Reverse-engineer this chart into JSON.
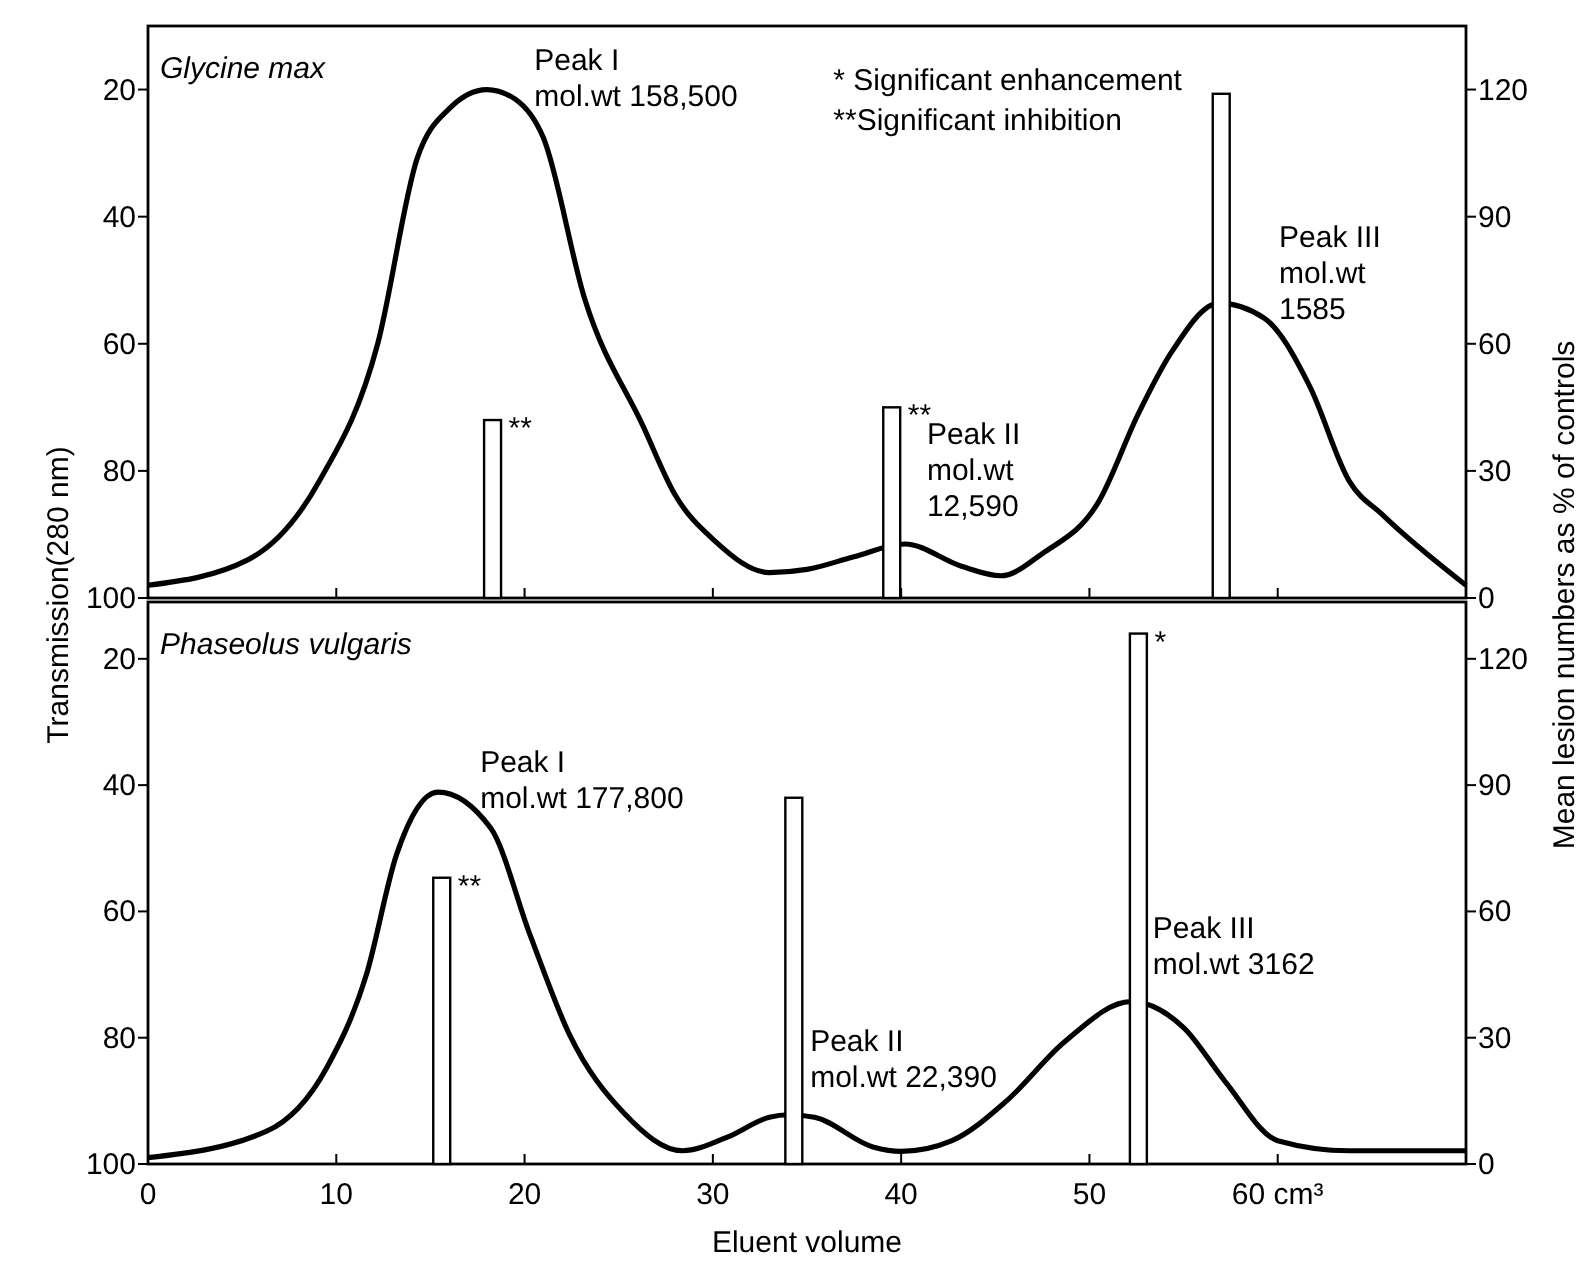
{
  "chart_data": [
    {
      "type": "line",
      "title": "Glycine max",
      "ylabel": "Transmission(280 nm)",
      "y2label": "Mean lesion numbers as % of controls",
      "xlim": [
        0,
        70
      ],
      "ylim": [
        100,
        10
      ],
      "y2lim": [
        0,
        135
      ],
      "xticks": [
        0,
        10,
        20,
        30,
        40,
        50,
        60
      ],
      "yticks": [
        20,
        40,
        60,
        80,
        100
      ],
      "y2ticks": [
        0,
        30,
        60,
        90,
        120
      ],
      "tick_labels": "y",
      "series": [
        {
          "color": "#000000",
          "x": [
            0,
            5.3,
            9.1,
            12.2,
            14.3,
            16,
            18,
            19.5,
            21,
            23.2,
            26.3,
            28,
            30.1,
            33,
            35,
            37.5,
            40.2,
            43.2,
            45.3,
            47.5,
            50.5,
            52.6,
            54.3,
            56.9,
            59.3,
            61.7,
            63.8,
            65.6,
            70
          ],
          "values": [
            98,
            94,
            81.6,
            60,
            30.8,
            23,
            20,
            21.5,
            27.6,
            53,
            73,
            83.8,
            91,
            96,
            95.5,
            93.5,
            91.5,
            95,
            96.5,
            93,
            84.8,
            71,
            61.6,
            53.6,
            56,
            66.7,
            81.6,
            87,
            98
          ]
        },
        {
          "type": "bar",
          "axis": "y2",
          "color": "#ffffff",
          "x": [
            18.3,
            39.5,
            57
          ],
          "values": [
            42,
            45,
            119
          ]
        }
      ],
      "annotations": [
        "* Significant enhancement",
        "**Significant inhibition",
        {
          "text": "Peak I\nmol.wt 158,500",
          "x": 18,
          "y": 20
        },
        {
          "text": "Peak II\nmol.wt\n12,590",
          "x": 40.2,
          "y": 91.5
        },
        {
          "text": "Peak III\nmol.wt\n1585",
          "x": 56.9,
          "y": 53.6
        },
        {
          "text": "**",
          "x": 18.3,
          "y": 72
        },
        {
          "text": "**",
          "x": 39.5,
          "y": 70
        }
      ]
    },
    {
      "type": "line",
      "title": "Phaseolus vulgaris",
      "xlabel": "Eluent volume",
      "xlim": [
        0,
        70
      ],
      "ylim": [
        100,
        11
      ],
      "y2lim": [
        0,
        133.5
      ],
      "xticks": [
        0,
        10,
        20,
        30,
        40,
        50,
        {
          "value": 60,
          "label": "60 cm³"
        }
      ],
      "yticks": [
        20,
        40,
        60,
        80,
        100
      ],
      "y2ticks": [
        0,
        30,
        60,
        90,
        120
      ],
      "series": [
        {
          "color": "#000000",
          "x": [
            0,
            6.3,
            9.5,
            11.6,
            13.2,
            15.4,
            18.2,
            20.3,
            22.4,
            25.3,
            28.4,
            30.8,
            33,
            34,
            35.4,
            38.5,
            40,
            42.7,
            45.6,
            48.7,
            52.2,
            55,
            57.2,
            60,
            63.8,
            70
          ],
          "values": [
            99,
            94.8,
            84.7,
            70,
            51,
            41.1,
            46.8,
            63.8,
            79.6,
            92,
            97.9,
            95.7,
            92.6,
            92.2,
            92.6,
            97.3,
            98,
            96.3,
            90,
            80.6,
            74.3,
            78.4,
            86.9,
            96.3,
            97.9,
            97.9
          ]
        },
        {
          "type": "bar",
          "axis": "y2",
          "color": "#ffffff",
          "x": [
            15.6,
            34.3,
            52.6
          ],
          "values": [
            68,
            87,
            126
          ]
        }
      ],
      "annotations": [
        {
          "text": "Peak I\nmol.wt 177,800",
          "x": 15.4,
          "y": 41.1
        },
        {
          "text": "Peak II\nmol.wt 22,390",
          "x": 34,
          "y": 92.2
        },
        {
          "text": "Peak III\nmol.wt 3162",
          "x": 52.2,
          "y": 74.3
        },
        {
          "text": "**",
          "x": 15.6,
          "y": 54.7
        },
        {
          "text": "*",
          "x": 52.6,
          "y": 16
        }
      ]
    }
  ]
}
